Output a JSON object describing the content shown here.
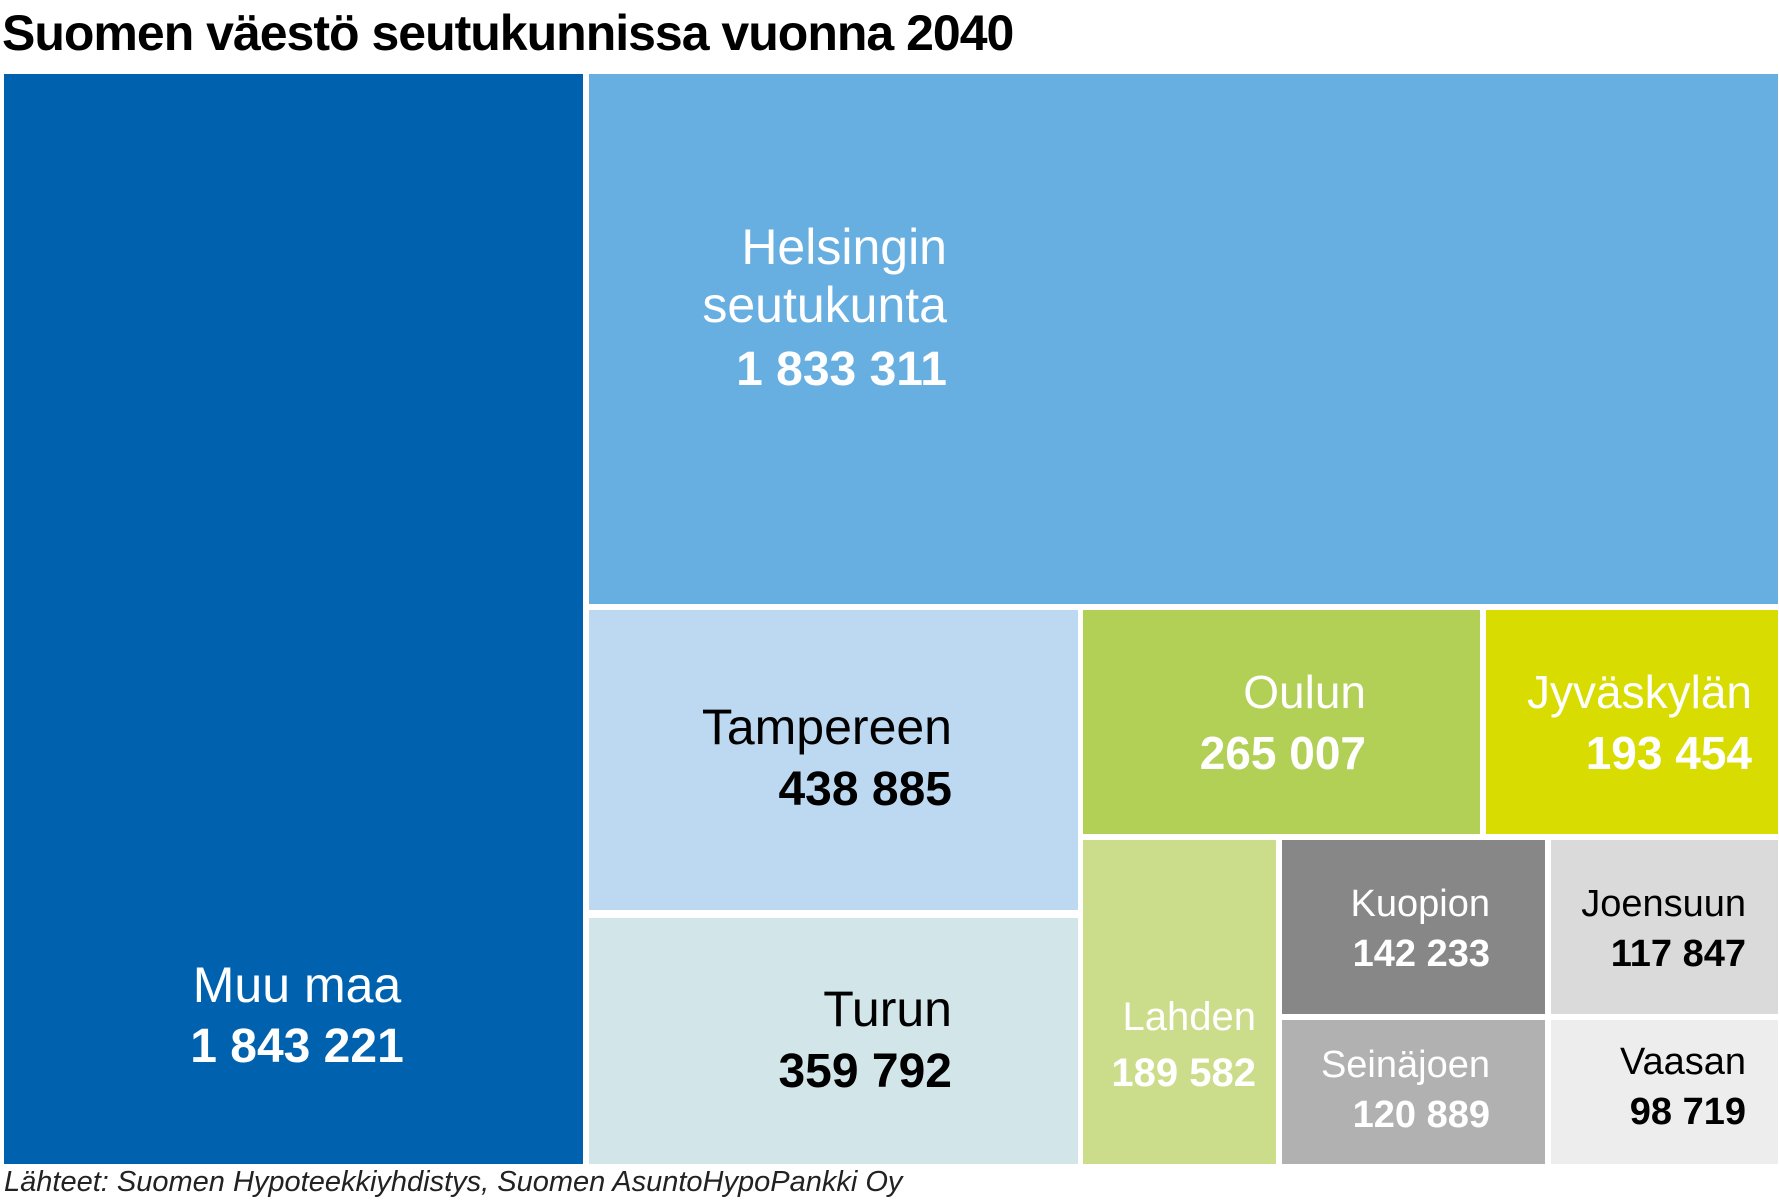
{
  "title": "Suomen väestö seutukunnissa vuonna 2040",
  "source": "Lähteet: Suomen Hypoteekkiyhdistys, Suomen AsuntoHypoPankki Oy",
  "chart_data": {
    "type": "treemap",
    "title": "Suomen väestö seutukunnissa vuonna 2040",
    "items": [
      {
        "name": "Muu maa",
        "label": "Muu maa",
        "value": 1843221,
        "value_text": "1 843 221",
        "color": "#0062ae",
        "text_color": "#ffffff"
      },
      {
        "name": "Helsingin seutukunta",
        "label": [
          "Helsingin",
          "seutukunta"
        ],
        "value": 1833311,
        "value_text": "1 833 311",
        "color": "#67aee1",
        "text_color": "#ffffff"
      },
      {
        "name": "Tampereen",
        "label": "Tampereen",
        "value": 438885,
        "value_text": "438 885",
        "color": "#bcd9f1",
        "text_color": "#000000"
      },
      {
        "name": "Turun",
        "label": "Turun",
        "value": 359792,
        "value_text": "359 792",
        "color": "#d2e6ea",
        "text_color": "#000000"
      },
      {
        "name": "Oulun",
        "label": "Oulun",
        "value": 265007,
        "value_text": "265 007",
        "color": "#b2cf56",
        "text_color": "#ffffff"
      },
      {
        "name": "Jyväskylän",
        "label": "Jyväskylän",
        "value": 193454,
        "value_text": "193 454",
        "color": "#d8dc00",
        "text_color": "#ffffff"
      },
      {
        "name": "Lahden",
        "label": "Lahden",
        "value": 189582,
        "value_text": "189 582",
        "color": "#cbdc8a",
        "text_color": "#ffffff"
      },
      {
        "name": "Kuopion",
        "label": "Kuopion",
        "value": 142233,
        "value_text": "142 233",
        "color": "#878787",
        "text_color": "#ffffff"
      },
      {
        "name": "Joensuun",
        "label": "Joensuun",
        "value": 117847,
        "value_text": "117 847",
        "color": "#dadada",
        "text_color": "#000000"
      },
      {
        "name": "Seinäjoen",
        "label": "Seinäjoen",
        "value": 120889,
        "value_text": "120 889",
        "color": "#b1b1b1",
        "text_color": "#ffffff"
      },
      {
        "name": "Vaasan",
        "label": "Vaasan",
        "value": 98719,
        "value_text": "98 719",
        "color": "#ededed",
        "text_color": "#000000"
      }
    ]
  }
}
